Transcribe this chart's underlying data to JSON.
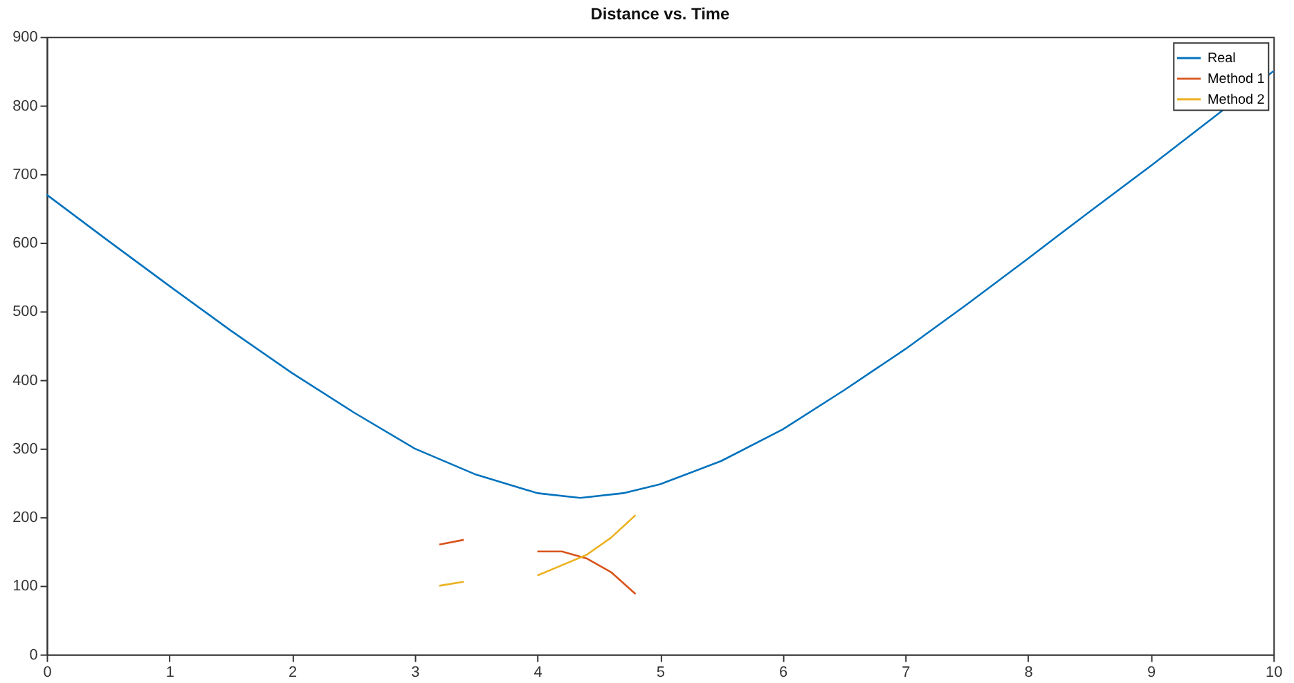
{
  "chart_data": {
    "type": "line",
    "title": "Distance vs. Time",
    "x": [
      0,
      0.5,
      1,
      1.5,
      2,
      2.5,
      3,
      3.5,
      4,
      4.35,
      4.7,
      5,
      5.5,
      6,
      6.5,
      7,
      7.5,
      8,
      8.5,
      9,
      9.5,
      10
    ],
    "series": [
      {
        "name": "Real",
        "color": "#0072bd",
        "values": [
          670,
          603,
          537,
          472,
          410,
          353,
          300,
          262,
          235,
          228,
          235,
          248,
          282,
          328,
          385,
          445,
          510,
          577,
          645,
          712,
          781,
          850
        ]
      },
      {
        "name": "Method 1",
        "color": "#d95319",
        "x": [
          3.2,
          3.4,
          3.7,
          4.0,
          4.2,
          4.4,
          4.6,
          4.8
        ],
        "values": [
          160,
          167,
          null,
          150,
          150,
          140,
          120,
          88
        ]
      },
      {
        "name": "Method 2",
        "color": "#edb120",
        "x": [
          3.2,
          3.4,
          3.7,
          4.0,
          4.2,
          4.4,
          4.6,
          4.8
        ],
        "values": [
          100,
          106,
          null,
          115,
          130,
          145,
          170,
          203
        ]
      }
    ],
    "xlim": [
      0,
      10
    ],
    "xticks": [
      0,
      1,
      2,
      3,
      4,
      5,
      6,
      7,
      8,
      9,
      10
    ],
    "ylim": [
      0,
      900
    ],
    "yticks": [
      0,
      100,
      200,
      300,
      400,
      500,
      600,
      700,
      800,
      900
    ],
    "grid": false,
    "legend": "top right",
    "marker": "none",
    "line_style": "solid"
  }
}
